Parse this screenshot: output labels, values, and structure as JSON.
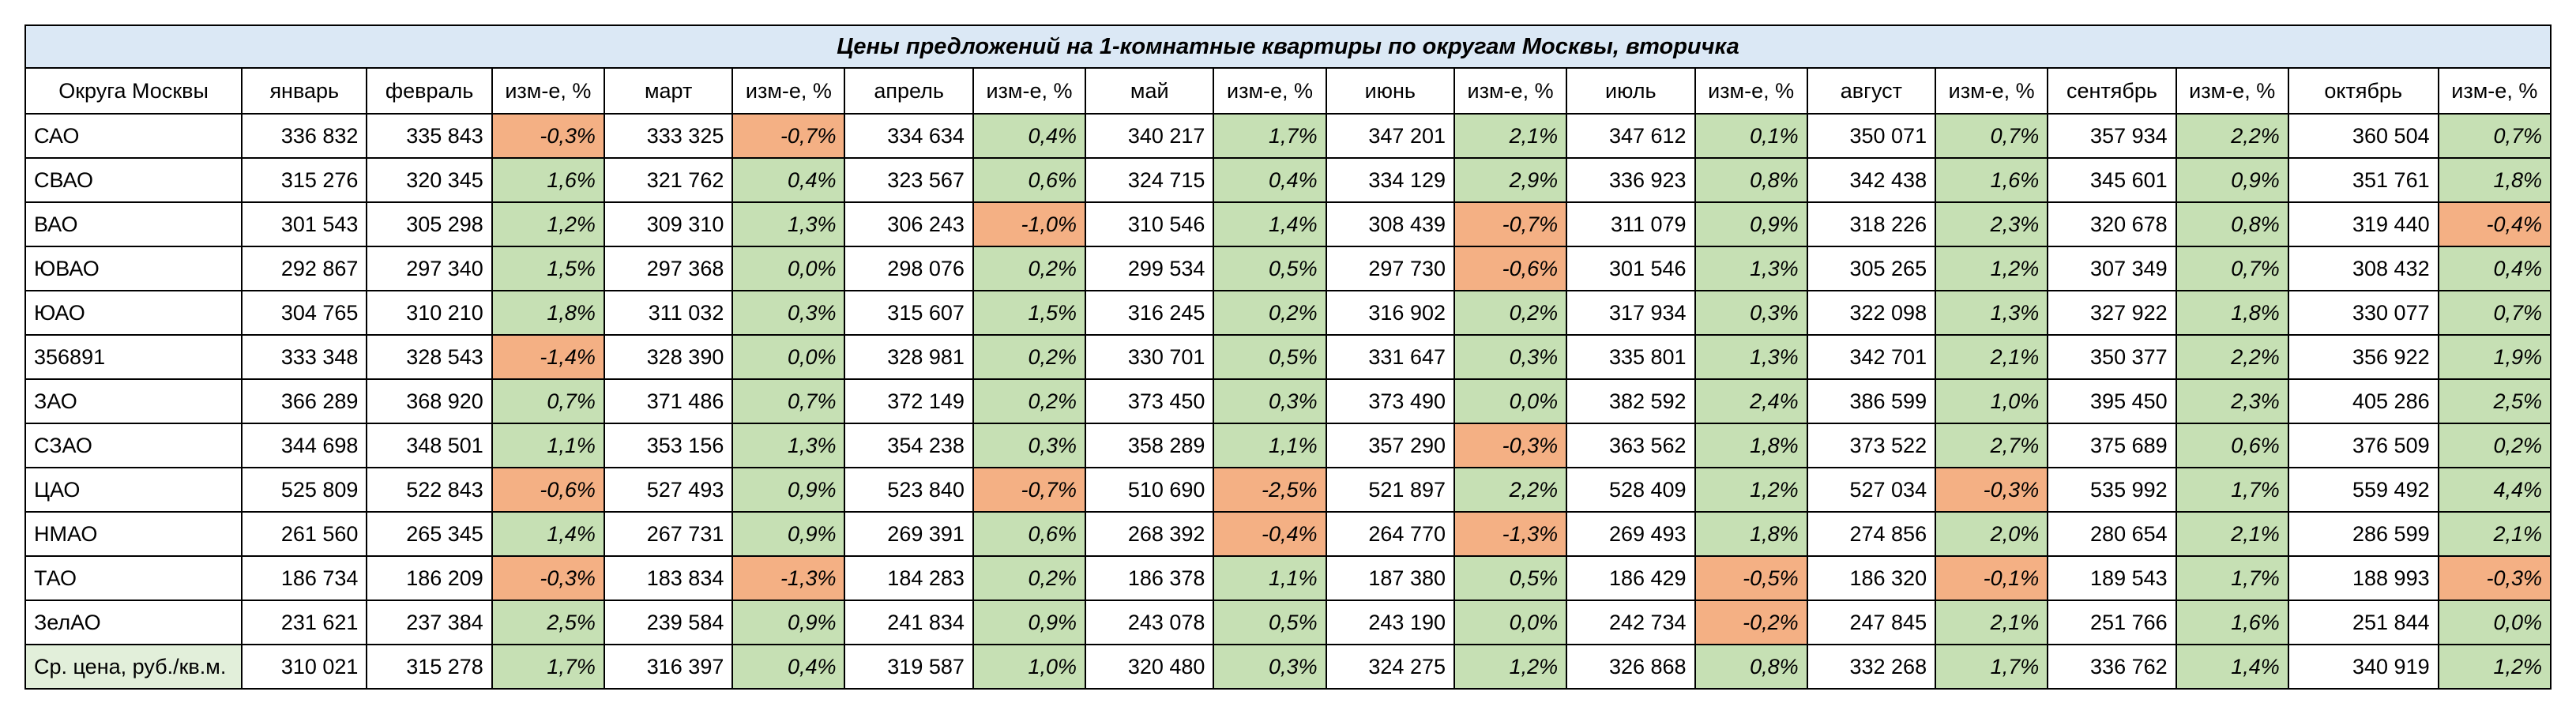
{
  "title": "Цены предложений на 1-комнатные квартиры по округам Москвы, вторичка",
  "colors": {
    "title_bg": "#dbe8f5",
    "positive": "#c6e0b4",
    "negative": "#f4b084",
    "avg_bg": "#e2efda"
  },
  "headers": [
    "Округа Москвы",
    "январь",
    "февраль",
    "изм-е, %",
    "март",
    "изм-е, %",
    "апрель",
    "изм-е, %",
    "май",
    "изм-е, %",
    "июнь",
    "изм-е, %",
    "июль",
    "изм-е, %",
    "август",
    "изм-е, %",
    "сентябрь",
    "изм-е, %",
    "октябрь",
    "изм-е, %"
  ],
  "rows": [
    {
      "name": "САО",
      "cells": [
        "336 832",
        "335 843",
        "-0,3%",
        "333 325",
        "-0,7%",
        "334 634",
        "0,4%",
        "340 217",
        "1,7%",
        "347 201",
        "2,1%",
        "347 612",
        "0,1%",
        "350 071",
        "0,7%",
        "357 934",
        "2,2%",
        "360 504",
        "0,7%"
      ]
    },
    {
      "name": "СВАО",
      "cells": [
        "315 276",
        "320 345",
        "1,6%",
        "321 762",
        "0,4%",
        "323 567",
        "0,6%",
        "324 715",
        "0,4%",
        "334 129",
        "2,9%",
        "336 923",
        "0,8%",
        "342 438",
        "1,6%",
        "345 601",
        "0,9%",
        "351 761",
        "1,8%"
      ]
    },
    {
      "name": "ВАО",
      "cells": [
        "301 543",
        "305 298",
        "1,2%",
        "309 310",
        "1,3%",
        "306 243",
        "-1,0%",
        "310 546",
        "1,4%",
        "308 439",
        "-0,7%",
        "311 079",
        "0,9%",
        "318 226",
        "2,3%",
        "320 678",
        "0,8%",
        "319 440",
        "-0,4%"
      ]
    },
    {
      "name": "ЮВАО",
      "cells": [
        "292 867",
        "297 340",
        "1,5%",
        "297 368",
        "0,0%",
        "298 076",
        "0,2%",
        "299 534",
        "0,5%",
        "297 730",
        "-0,6%",
        "301 546",
        "1,3%",
        "305 265",
        "1,2%",
        "307 349",
        "0,7%",
        "308 432",
        "0,4%"
      ]
    },
    {
      "name": "ЮАО",
      "cells": [
        "304 765",
        "310 210",
        "1,8%",
        "311 032",
        "0,3%",
        "315 607",
        "1,5%",
        "316 245",
        "0,2%",
        "316 902",
        "0,2%",
        "317 934",
        "0,3%",
        "322 098",
        "1,3%",
        "327 922",
        "1,8%",
        "330 077",
        "0,7%"
      ]
    },
    {
      "name": "356891",
      "cells": [
        "333 348",
        "328 543",
        "-1,4%",
        "328 390",
        "0,0%",
        "328 981",
        "0,2%",
        "330 701",
        "0,5%",
        "331 647",
        "0,3%",
        "335 801",
        "1,3%",
        "342 701",
        "2,1%",
        "350 377",
        "2,2%",
        "356 922",
        "1,9%"
      ]
    },
    {
      "name": "ЗАО",
      "cells": [
        "366 289",
        "368 920",
        "0,7%",
        "371 486",
        "0,7%",
        "372 149",
        "0,2%",
        "373 450",
        "0,3%",
        "373 490",
        "0,0%",
        "382 592",
        "2,4%",
        "386 599",
        "1,0%",
        "395 450",
        "2,3%",
        "405 286",
        "2,5%"
      ]
    },
    {
      "name": "СЗАО",
      "cells": [
        "344 698",
        "348 501",
        "1,1%",
        "353 156",
        "1,3%",
        "354 238",
        "0,3%",
        "358 289",
        "1,1%",
        "357 290",
        "-0,3%",
        "363 562",
        "1,8%",
        "373 522",
        "2,7%",
        "375 689",
        "0,6%",
        "376 509",
        "0,2%"
      ]
    },
    {
      "name": "ЦАО",
      "cells": [
        "525 809",
        "522 843",
        "-0,6%",
        "527 493",
        "0,9%",
        "523 840",
        "-0,7%",
        "510 690",
        "-2,5%",
        "521 897",
        "2,2%",
        "528 409",
        "1,2%",
        "527 034",
        "-0,3%",
        "535 992",
        "1,7%",
        "559 492",
        "4,4%"
      ]
    },
    {
      "name": "НМАО",
      "cells": [
        "261 560",
        "265 345",
        "1,4%",
        "267 731",
        "0,9%",
        "269 391",
        "0,6%",
        "268 392",
        "-0,4%",
        "264 770",
        "-1,3%",
        "269 493",
        "1,8%",
        "274 856",
        "2,0%",
        "280 654",
        "2,1%",
        "286 599",
        "2,1%"
      ]
    },
    {
      "name": "ТАО",
      "cells": [
        "186 734",
        "186 209",
        "-0,3%",
        "183 834",
        "-1,3%",
        "184 283",
        "0,2%",
        "186 378",
        "1,1%",
        "187 380",
        "0,5%",
        "186 429",
        "-0,5%",
        "186 320",
        "-0,1%",
        "189 543",
        "1,7%",
        "188 993",
        "-0,3%"
      ]
    },
    {
      "name": "ЗелАО",
      "cells": [
        "231 621",
        "237 384",
        "2,5%",
        "239 584",
        "0,9%",
        "241 834",
        "0,9%",
        "243 078",
        "0,5%",
        "243 190",
        "0,0%",
        "242 734",
        "-0,2%",
        "247 845",
        "2,1%",
        "251 766",
        "1,6%",
        "251 844",
        "0,0%"
      ]
    },
    {
      "name": "Ср. цена, руб./кв.м.",
      "cells": [
        "310 021",
        "315 278",
        "1,7%",
        "316 397",
        "0,4%",
        "319 587",
        "1,0%",
        "320 480",
        "0,3%",
        "324 275",
        "1,2%",
        "326 868",
        "0,8%",
        "332 268",
        "1,7%",
        "336 762",
        "1,4%",
        "340 919",
        "1,2%"
      ]
    }
  ]
}
